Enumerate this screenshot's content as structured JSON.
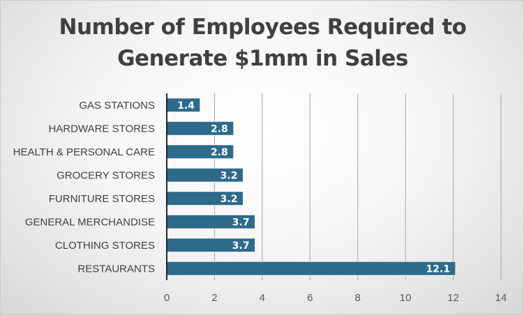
{
  "chart_data": {
    "type": "bar",
    "orientation": "horizontal",
    "title": "Number of Employees Required to\nGenerate $1mm in Sales",
    "categories": [
      "GAS STATIONS",
      "HARDWARE STORES",
      "HEALTH & PERSONAL CARE",
      "GROCERY STORES",
      "FURNITURE STORES",
      "GENERAL MERCHANDISE",
      "CLOTHING STORES",
      "RESTAURANTS"
    ],
    "values": [
      1.4,
      2.8,
      2.8,
      3.2,
      3.2,
      3.7,
      3.7,
      12.1
    ],
    "data_labels": [
      "1.4",
      "2.8",
      "2.8",
      "3.2",
      "3.2",
      "3.7",
      "3.7",
      "12.1"
    ],
    "xlim": [
      0,
      14
    ],
    "x_ticks": [
      0,
      2,
      4,
      6,
      8,
      10,
      12,
      14
    ],
    "x_tick_labels": [
      "0",
      "2",
      "4",
      "6",
      "8",
      "10",
      "12",
      "14"
    ],
    "xlabel": "",
    "ylabel": "",
    "grid": "vertical",
    "legend": "none",
    "colors": {
      "bar": "#2e6b8a",
      "bar_edge": "#ffffff",
      "grid": "#a6a6a6",
      "axis": "#262626"
    }
  }
}
